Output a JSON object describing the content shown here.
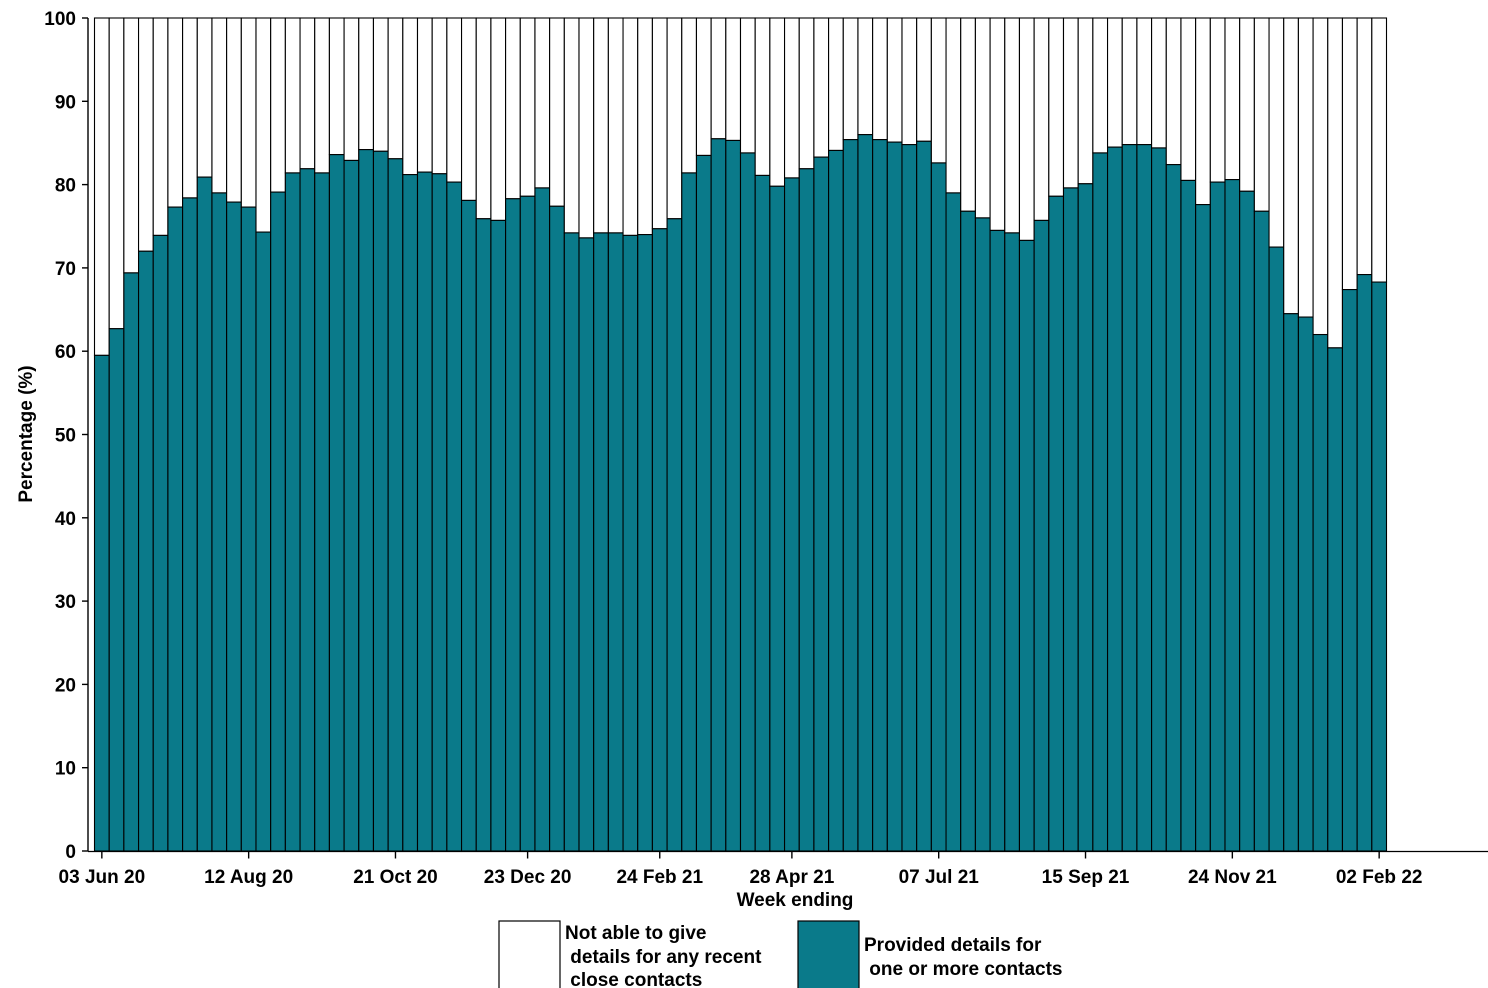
{
  "chart_data": {
    "type": "bar",
    "stacked": true,
    "xlabel": "Week ending",
    "ylabel": "Percentage (%)",
    "ylim": [
      0,
      100
    ],
    "yticks": [
      0,
      10,
      20,
      30,
      40,
      50,
      60,
      70,
      80,
      90,
      100
    ],
    "x_tick_labels": [
      "03 Jun 20",
      "12 Aug 20",
      "21 Oct 20",
      "23 Dec 20",
      "24 Feb 21",
      "28 Apr 21",
      "07 Jul 21",
      "15 Sep 21",
      "24 Nov 21",
      "02 Feb 22"
    ],
    "x_tick_index": [
      0,
      10,
      20,
      29,
      38,
      47,
      57,
      67,
      77,
      87
    ],
    "grid": false,
    "legend_position": "bottom",
    "series": [
      {
        "name": "Provided details for one or more contacts",
        "color": "#0a7a8a",
        "values": [
          59.5,
          62.7,
          69.4,
          72.0,
          73.9,
          77.3,
          78.4,
          80.9,
          79.0,
          77.9,
          77.3,
          74.3,
          79.1,
          81.4,
          81.9,
          81.4,
          83.6,
          82.9,
          84.2,
          84.0,
          83.1,
          81.2,
          81.5,
          81.3,
          80.3,
          78.1,
          75.9,
          75.7,
          78.3,
          78.6,
          79.6,
          77.4,
          74.2,
          73.6,
          74.2,
          74.2,
          73.9,
          74.0,
          74.7,
          75.9,
          81.4,
          83.5,
          85.5,
          85.3,
          83.8,
          81.1,
          79.8,
          80.8,
          81.9,
          83.3,
          84.1,
          85.4,
          86.0,
          85.4,
          85.1,
          84.8,
          85.2,
          82.6,
          79.0,
          76.8,
          76.0,
          74.5,
          74.2,
          73.3,
          75.7,
          78.6,
          79.6,
          80.1,
          83.8,
          84.5,
          84.8,
          84.8,
          84.4,
          82.4,
          80.5,
          77.6,
          80.3,
          80.6,
          79.2,
          76.8,
          72.5,
          64.5,
          64.1,
          62.0,
          60.4,
          67.4,
          69.2,
          68.3
        ]
      },
      {
        "name": "Not able to give details for any recent close contacts",
        "color": "#ffffff",
        "values": "remainder to 100"
      }
    ]
  },
  "legend": {
    "not_able_line1": "Not able to give",
    "not_able_line2": " details for any recent",
    "not_able_line3": " close contacts",
    "provided_line1": "Provided details for",
    "provided_line2": " one or more contacts"
  }
}
